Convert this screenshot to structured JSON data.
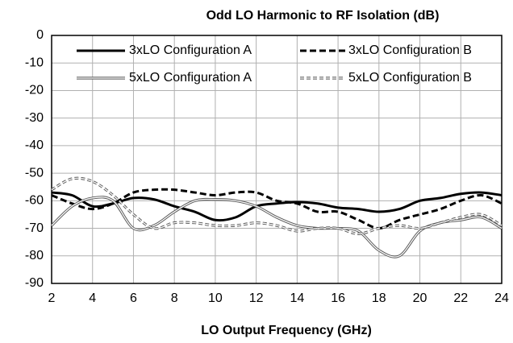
{
  "chart_data": {
    "type": "line",
    "title": "Odd LO Harmonic to RF Isolation (dB)",
    "x_label": "LO Output Frequency (GHz)",
    "x": [
      2,
      3,
      4,
      5,
      6,
      7,
      8,
      9,
      10,
      11,
      12,
      13,
      14,
      15,
      16,
      17,
      18,
      19,
      20,
      21,
      22,
      23,
      24
    ],
    "series": [
      {
        "name": "3xLO Configuration A",
        "color": "#000000",
        "dash": false,
        "double": false,
        "values": [
          -57,
          -58,
          -62,
          -61,
          -59,
          -59.5,
          -62,
          -64,
          -67,
          -66,
          -62,
          -61,
          -60.5,
          -61,
          -62.5,
          -63,
          -64,
          -63,
          -60,
          -59,
          -57.5,
          -57,
          -58
        ]
      },
      {
        "name": "3xLO Configuration B",
        "color": "#000000",
        "dash": true,
        "double": false,
        "values": [
          -58,
          -61,
          -63,
          -61,
          -57,
          -56,
          -56,
          -57,
          -58,
          -57,
          -57,
          -60,
          -61,
          -64,
          -64,
          -67,
          -70,
          -67,
          -65,
          -63,
          -60,
          -58,
          -61
        ]
      },
      {
        "name": "5xLO Configuration A",
        "color": "#555555",
        "dash": false,
        "double": true,
        "values": [
          -69,
          -62,
          -59,
          -60,
          -70,
          -69,
          -64,
          -60,
          -59.5,
          -60,
          -62,
          -66,
          -69,
          -70,
          -70,
          -71,
          -78,
          -80,
          -71,
          -68,
          -67,
          -66,
          -70
        ]
      },
      {
        "name": "5xLO Configuration B",
        "color": "#555555",
        "dash": true,
        "double": true,
        "values": [
          -56,
          -52,
          -53,
          -58,
          -65,
          -70,
          -68,
          -68,
          -69,
          -69,
          -68,
          -69,
          -71,
          -70,
          -70,
          -72,
          -70,
          -69,
          -70,
          -68,
          -66,
          -65,
          -69
        ]
      }
    ],
    "xlim": [
      2,
      24
    ],
    "xticks": [
      2,
      4,
      6,
      8,
      10,
      12,
      14,
      16,
      18,
      20,
      22,
      24
    ],
    "ylim": [
      -90,
      0
    ],
    "yticks": [
      0,
      -10,
      -20,
      -30,
      -40,
      -50,
      -60,
      -70,
      -80,
      -90
    ],
    "grid": true
  }
}
